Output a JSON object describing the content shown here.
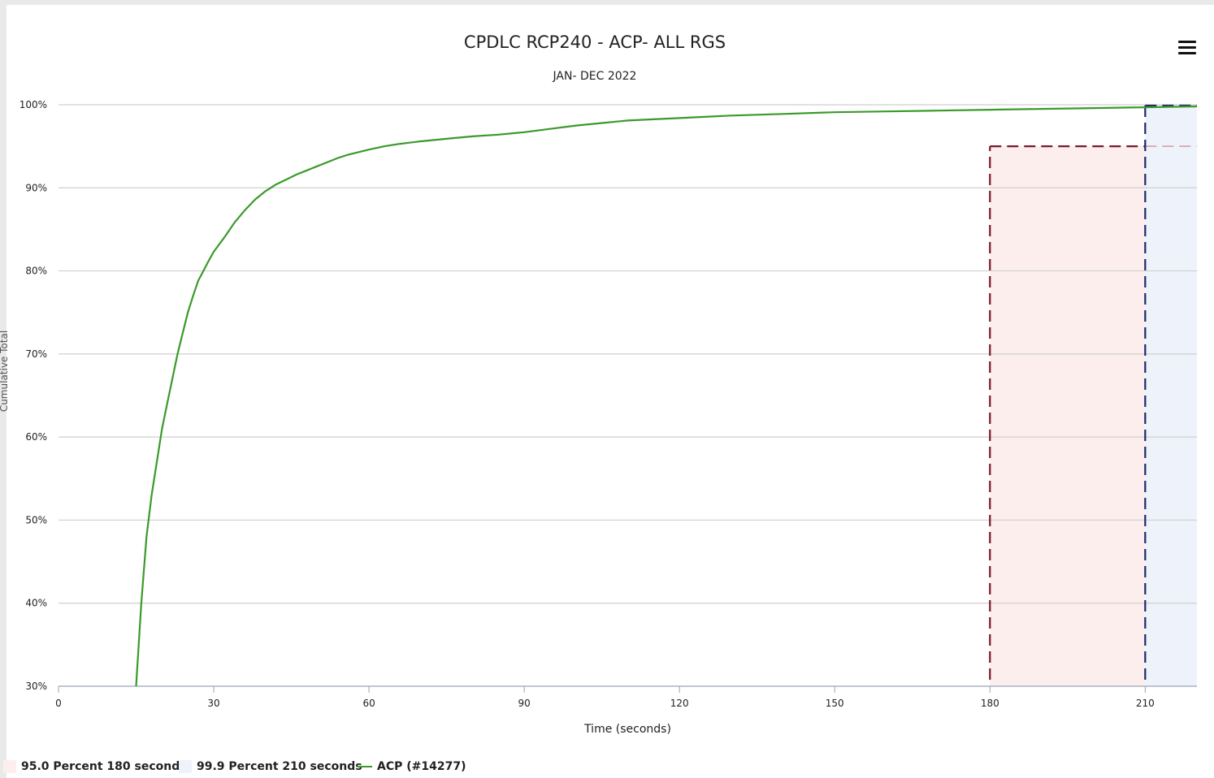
{
  "chart_data": {
    "type": "line",
    "title": "CPDLC RCP240 - ACP- ALL RGS",
    "subtitle": "JAN- DEC 2022",
    "xlabel": "Time (seconds)",
    "ylabel": "Cumulative Total",
    "xlim": [
      0,
      220
    ],
    "ylim": [
      30,
      100
    ],
    "x_ticks": [
      0,
      30,
      60,
      90,
      120,
      150,
      180,
      210
    ],
    "y_ticks": [
      30,
      40,
      50,
      60,
      70,
      80,
      90,
      100
    ],
    "y_tick_labels": [
      "30%",
      "40%",
      "50%",
      "60%",
      "70%",
      "80%",
      "90%",
      "100%"
    ],
    "grid": true,
    "legend_position": "bottom-left",
    "series": [
      {
        "name": "ACP (#14277)",
        "color": "#3a9a2a",
        "x": [
          15,
          16,
          17,
          18,
          19,
          20,
          21,
          22,
          23,
          24,
          25,
          26,
          27,
          28,
          29,
          30,
          32,
          34,
          36,
          38,
          40,
          42,
          44,
          46,
          48,
          50,
          52,
          54,
          56,
          58,
          60,
          63,
          66,
          70,
          75,
          80,
          85,
          90,
          95,
          100,
          105,
          110,
          120,
          130,
          140,
          150,
          160,
          170,
          180,
          190,
          200,
          210,
          220
        ],
        "y": [
          30,
          40,
          48,
          53,
          57,
          61,
          64,
          67,
          70,
          72.5,
          75,
          77,
          78.8,
          80,
          81.2,
          82.3,
          84,
          85.8,
          87.3,
          88.6,
          89.6,
          90.4,
          91,
          91.6,
          92.1,
          92.6,
          93.1,
          93.6,
          94,
          94.3,
          94.6,
          95,
          95.3,
          95.6,
          95.9,
          96.2,
          96.4,
          96.7,
          97.1,
          97.5,
          97.8,
          98.1,
          98.4,
          98.7,
          98.9,
          99.1,
          99.2,
          99.3,
          99.4,
          99.5,
          99.6,
          99.7,
          99.8
        ]
      }
    ],
    "bands": [
      {
        "name": "95.0 Percent 180 seconds",
        "x_from": 180,
        "x_to": 210,
        "y_level": 95,
        "fill": "#fdeeee",
        "line": "#7a1a2a",
        "threshold_color": "#d9a6ae"
      },
      {
        "name": "99.9 Percent 210 seconds",
        "x_from": 210,
        "x_to": 220,
        "y_level": 99.9,
        "fill": "#eef2fb",
        "line": "#1b2a6b"
      }
    ]
  }
}
